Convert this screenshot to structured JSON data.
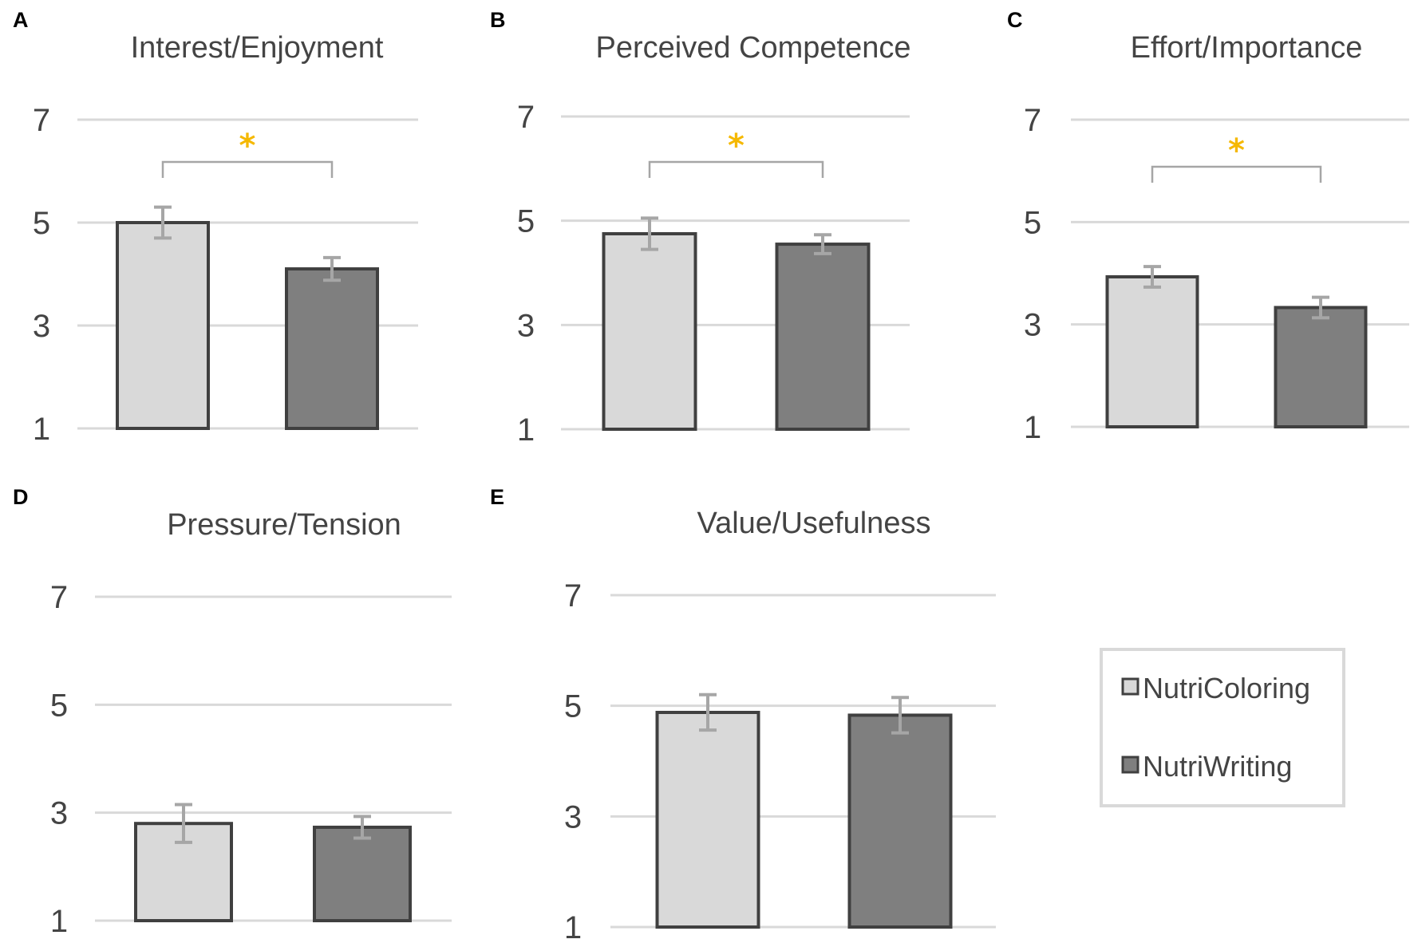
{
  "figure": {
    "series": [
      {
        "name": "NutriColoring",
        "color": "#d9d9d9"
      },
      {
        "name": "NutriWriting",
        "color": "#7f7f7f"
      }
    ],
    "significance_marker": "*"
  },
  "chart_data": [
    {
      "type": "bar",
      "panel": "A",
      "title": "Interest/Enjoyment",
      "categories": [
        "NutriColoring",
        "NutriWriting"
      ],
      "values": [
        5.0,
        4.1
      ],
      "errors": [
        0.3,
        0.22
      ],
      "ylim": [
        1,
        7
      ],
      "yticks": [
        "1",
        "3",
        "5",
        "7"
      ],
      "significant": true,
      "grid": true
    },
    {
      "type": "bar",
      "panel": "B",
      "title": "Perceived Competence",
      "categories": [
        "NutriColoring",
        "NutriWriting"
      ],
      "values": [
        4.75,
        4.55
      ],
      "errors": [
        0.3,
        0.18
      ],
      "ylim": [
        1,
        7
      ],
      "yticks": [
        "1",
        "3",
        "5",
        "7"
      ],
      "significant": true,
      "grid": true
    },
    {
      "type": "bar",
      "panel": "C",
      "title": "Effort/Importance",
      "categories": [
        "NutriColoring",
        "NutriWriting"
      ],
      "values": [
        3.93,
        3.33
      ],
      "errors": [
        0.2,
        0.2
      ],
      "ylim": [
        1,
        7
      ],
      "yticks": [
        "1",
        "3",
        "5",
        "7"
      ],
      "significant": true,
      "grid": true
    },
    {
      "type": "bar",
      "panel": "D",
      "title": "Pressure/Tension",
      "categories": [
        "NutriColoring",
        "NutriWriting"
      ],
      "values": [
        2.8,
        2.73
      ],
      "errors": [
        0.35,
        0.2
      ],
      "ylim": [
        1,
        7
      ],
      "yticks": [
        "1",
        "3",
        "5",
        "7"
      ],
      "significant": false,
      "grid": true
    },
    {
      "type": "bar",
      "panel": "E",
      "title": "Value/Usefulness",
      "categories": [
        "NutriColoring",
        "NutriWriting"
      ],
      "values": [
        4.88,
        4.83
      ],
      "errors": [
        0.32,
        0.32
      ],
      "ylim": [
        1,
        7
      ],
      "yticks": [
        "1",
        "3",
        "5",
        "7"
      ],
      "significant": false,
      "grid": true
    }
  ],
  "legend": {
    "entries": [
      "NutriColoring",
      "NutriWriting"
    ],
    "placement": "bottom-right"
  }
}
